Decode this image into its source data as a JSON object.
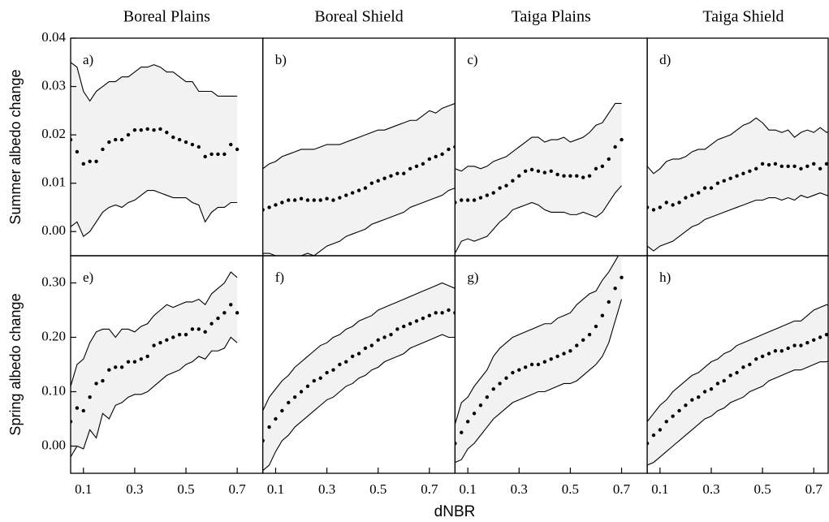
{
  "xlabel": "dNBR",
  "chart_data": [
    {
      "type": "line",
      "title": "Boreal Plains",
      "label": "a)",
      "ylabel": "Summer albedo change",
      "color": "#000000",
      "band_color": "#f2f2f2",
      "xlim": [
        0.05,
        0.8
      ],
      "ylim": [
        -0.005,
        0.04
      ],
      "yticks": [
        {
          "value": 0,
          "label": "0.00"
        },
        0.01,
        0.02,
        0.03,
        0.04
      ],
      "x": [
        0.05,
        0.075,
        0.1,
        0.125,
        0.15,
        0.175,
        0.2,
        0.225,
        0.25,
        0.275,
        0.3,
        0.325,
        0.35,
        0.375,
        0.4,
        0.425,
        0.45,
        0.475,
        0.5,
        0.525,
        0.55,
        0.575,
        0.6,
        0.625,
        0.65,
        0.675,
        0.7
      ],
      "values": [
        0.019,
        0.0165,
        0.014,
        0.0145,
        0.0145,
        0.017,
        0.0185,
        0.019,
        0.019,
        0.02,
        0.021,
        0.021,
        0.0212,
        0.021,
        0.0212,
        0.0205,
        0.0195,
        0.019,
        0.0185,
        0.018,
        0.0175,
        0.0155,
        0.016,
        0.016,
        0.016,
        0.018,
        0.017
      ],
      "upper": [
        0.035,
        0.034,
        0.029,
        0.027,
        0.029,
        0.03,
        0.031,
        0.031,
        0.032,
        0.032,
        0.033,
        0.034,
        0.034,
        0.0345,
        0.034,
        0.033,
        0.033,
        0.032,
        0.031,
        0.031,
        0.029,
        0.029,
        0.029,
        0.028,
        0.028,
        0.028,
        0.028
      ],
      "lower": [
        0.001,
        0.002,
        -0.001,
        0.0,
        0.002,
        0.004,
        0.005,
        0.0055,
        0.005,
        0.006,
        0.0065,
        0.0075,
        0.0085,
        0.0085,
        0.008,
        0.0075,
        0.007,
        0.007,
        0.007,
        0.006,
        0.0055,
        0.002,
        0.004,
        0.005,
        0.005,
        0.006,
        0.006
      ]
    },
    {
      "type": "line",
      "title": "Boreal Shield",
      "label": "b)",
      "color": "#000000",
      "band_color": "#f2f2f2",
      "xlim": [
        0.05,
        0.8
      ],
      "ylim": [
        -0.005,
        0.04
      ],
      "x": [
        0.05,
        0.075,
        0.1,
        0.125,
        0.15,
        0.175,
        0.2,
        0.225,
        0.25,
        0.275,
        0.3,
        0.325,
        0.35,
        0.375,
        0.4,
        0.425,
        0.45,
        0.475,
        0.5,
        0.525,
        0.55,
        0.575,
        0.6,
        0.625,
        0.65,
        0.675,
        0.7,
        0.725,
        0.75,
        0.775,
        0.8
      ],
      "values": [
        0.0045,
        0.005,
        0.0055,
        0.006,
        0.0065,
        0.0065,
        0.0068,
        0.0065,
        0.0065,
        0.0065,
        0.0068,
        0.0065,
        0.007,
        0.0075,
        0.008,
        0.0085,
        0.009,
        0.01,
        0.0105,
        0.011,
        0.0115,
        0.012,
        0.012,
        0.013,
        0.0135,
        0.014,
        0.015,
        0.0155,
        0.016,
        0.017,
        0.0175
      ],
      "upper": [
        0.013,
        0.014,
        0.0145,
        0.0155,
        0.016,
        0.0165,
        0.017,
        0.017,
        0.017,
        0.0175,
        0.018,
        0.018,
        0.018,
        0.0185,
        0.019,
        0.0195,
        0.02,
        0.0205,
        0.021,
        0.021,
        0.0215,
        0.022,
        0.0225,
        0.023,
        0.023,
        0.024,
        0.025,
        0.0245,
        0.0255,
        0.026,
        0.0265
      ],
      "lower": [
        -0.0045,
        -0.0045,
        -0.005,
        -0.005,
        -0.005,
        -0.005,
        -0.005,
        -0.0045,
        -0.005,
        -0.004,
        -0.003,
        -0.0025,
        -0.002,
        -0.001,
        -0.0005,
        0.0,
        0.0005,
        0.0015,
        0.002,
        0.0025,
        0.003,
        0.0035,
        0.004,
        0.005,
        0.0055,
        0.006,
        0.0065,
        0.007,
        0.0075,
        0.0085,
        0.009
      ]
    },
    {
      "type": "line",
      "title": "Taiga Plains",
      "label": "c)",
      "color": "#000000",
      "band_color": "#f2f2f2",
      "xlim": [
        0.05,
        0.8
      ],
      "ylim": [
        -0.005,
        0.04
      ],
      "x": [
        0.05,
        0.075,
        0.1,
        0.125,
        0.15,
        0.175,
        0.2,
        0.225,
        0.25,
        0.275,
        0.3,
        0.325,
        0.35,
        0.375,
        0.4,
        0.425,
        0.45,
        0.475,
        0.5,
        0.525,
        0.55,
        0.575,
        0.6,
        0.625,
        0.65,
        0.675,
        0.7
      ],
      "values": [
        0.006,
        0.0065,
        0.0065,
        0.0065,
        0.007,
        0.0075,
        0.008,
        0.009,
        0.0095,
        0.0105,
        0.0115,
        0.0125,
        0.0128,
        0.0125,
        0.0122,
        0.0125,
        0.0118,
        0.0115,
        0.0115,
        0.0115,
        0.0112,
        0.0115,
        0.013,
        0.0135,
        0.015,
        0.0175,
        0.019
      ],
      "upper": [
        0.013,
        0.0125,
        0.0135,
        0.0135,
        0.013,
        0.0135,
        0.0145,
        0.015,
        0.0155,
        0.0165,
        0.0175,
        0.0185,
        0.0195,
        0.0195,
        0.0185,
        0.019,
        0.019,
        0.0195,
        0.0185,
        0.019,
        0.0195,
        0.0205,
        0.022,
        0.0225,
        0.0245,
        0.0265,
        0.0265
      ],
      "lower": [
        -0.0045,
        -0.002,
        -0.0015,
        -0.002,
        -0.0015,
        -0.001,
        0.0005,
        0.002,
        0.003,
        0.0045,
        0.005,
        0.0055,
        0.006,
        0.0055,
        0.0045,
        0.004,
        0.004,
        0.004,
        0.0035,
        0.0035,
        0.004,
        0.0035,
        0.003,
        0.004,
        0.006,
        0.008,
        0.0095
      ]
    },
    {
      "type": "line",
      "title": "Taiga Shield",
      "label": "d)",
      "color": "#000000",
      "band_color": "#f2f2f2",
      "xlim": [
        0.05,
        0.8
      ],
      "ylim": [
        -0.005,
        0.04
      ],
      "x": [
        0.05,
        0.075,
        0.1,
        0.125,
        0.15,
        0.175,
        0.2,
        0.225,
        0.25,
        0.275,
        0.3,
        0.325,
        0.35,
        0.375,
        0.4,
        0.425,
        0.45,
        0.475,
        0.5,
        0.525,
        0.55,
        0.575,
        0.6,
        0.625,
        0.65,
        0.675,
        0.7,
        0.725,
        0.75,
        0.775,
        0.8
      ],
      "values": [
        0.005,
        0.0045,
        0.005,
        0.006,
        0.0055,
        0.006,
        0.007,
        0.0075,
        0.008,
        0.009,
        0.009,
        0.01,
        0.0105,
        0.011,
        0.0115,
        0.012,
        0.0125,
        0.013,
        0.014,
        0.0138,
        0.014,
        0.0135,
        0.0135,
        0.0135,
        0.013,
        0.0135,
        0.014,
        0.013,
        0.014,
        0.0135,
        0.013
      ],
      "upper": [
        0.0135,
        0.012,
        0.013,
        0.0145,
        0.015,
        0.015,
        0.0155,
        0.0165,
        0.017,
        0.017,
        0.018,
        0.019,
        0.0195,
        0.02,
        0.021,
        0.022,
        0.0225,
        0.0235,
        0.0225,
        0.021,
        0.021,
        0.0205,
        0.021,
        0.0195,
        0.0205,
        0.021,
        0.0205,
        0.0215,
        0.0205,
        0.021,
        0.02
      ],
      "lower": [
        -0.003,
        -0.004,
        -0.003,
        -0.0025,
        -0.002,
        -0.001,
        0.0,
        0.001,
        0.0015,
        0.0025,
        0.003,
        0.0035,
        0.004,
        0.0045,
        0.005,
        0.0055,
        0.006,
        0.0065,
        0.0065,
        0.007,
        0.007,
        0.0065,
        0.007,
        0.0065,
        0.0075,
        0.007,
        0.0075,
        0.008,
        0.0075,
        0.007,
        0.006
      ]
    },
    {
      "type": "line",
      "label": "e)",
      "ylabel": "Spring albedo change",
      "color": "#000000",
      "band_color": "#f2f2f2",
      "xlim": [
        0.05,
        0.8
      ],
      "ylim": [
        -0.05,
        0.35
      ],
      "xticks": [
        0.1,
        0.3,
        0.5,
        0.7
      ],
      "yticks": [
        {
          "value": 0,
          "label": "0.00"
        },
        {
          "value": 0.1,
          "label": "0.10"
        },
        {
          "value": 0.2,
          "label": "0.20"
        },
        {
          "value": 0.3,
          "label": "0.30"
        }
      ],
      "x": [
        0.05,
        0.075,
        0.1,
        0.125,
        0.15,
        0.175,
        0.2,
        0.225,
        0.25,
        0.275,
        0.3,
        0.325,
        0.35,
        0.375,
        0.4,
        0.425,
        0.45,
        0.475,
        0.5,
        0.525,
        0.55,
        0.575,
        0.6,
        0.625,
        0.65,
        0.675,
        0.7
      ],
      "values": [
        0.045,
        0.07,
        0.065,
        0.09,
        0.115,
        0.12,
        0.14,
        0.145,
        0.145,
        0.155,
        0.155,
        0.16,
        0.165,
        0.185,
        0.19,
        0.195,
        0.2,
        0.205,
        0.205,
        0.215,
        0.215,
        0.21,
        0.225,
        0.235,
        0.245,
        0.26,
        0.245
      ],
      "upper": [
        0.11,
        0.15,
        0.16,
        0.19,
        0.21,
        0.215,
        0.215,
        0.2,
        0.215,
        0.215,
        0.21,
        0.22,
        0.225,
        0.24,
        0.25,
        0.26,
        0.255,
        0.26,
        0.265,
        0.265,
        0.27,
        0.26,
        0.28,
        0.29,
        0.3,
        0.32,
        0.31
      ],
      "lower": [
        -0.02,
        0.0,
        -0.005,
        0.03,
        0.015,
        0.06,
        0.05,
        0.075,
        0.08,
        0.09,
        0.095,
        0.095,
        0.1,
        0.11,
        0.12,
        0.13,
        0.135,
        0.14,
        0.15,
        0.155,
        0.165,
        0.16,
        0.175,
        0.175,
        0.18,
        0.2,
        0.19
      ]
    },
    {
      "type": "line",
      "label": "f)",
      "color": "#000000",
      "band_color": "#f2f2f2",
      "xlim": [
        0.05,
        0.8
      ],
      "ylim": [
        -0.05,
        0.35
      ],
      "xticks": [
        0.1,
        0.3,
        0.5,
        0.7
      ],
      "x": [
        0.05,
        0.075,
        0.1,
        0.125,
        0.15,
        0.175,
        0.2,
        0.225,
        0.25,
        0.275,
        0.3,
        0.325,
        0.35,
        0.375,
        0.4,
        0.425,
        0.45,
        0.475,
        0.5,
        0.525,
        0.55,
        0.575,
        0.6,
        0.625,
        0.65,
        0.675,
        0.7,
        0.725,
        0.75,
        0.775,
        0.8
      ],
      "values": [
        0.01,
        0.035,
        0.05,
        0.065,
        0.08,
        0.09,
        0.1,
        0.11,
        0.12,
        0.125,
        0.135,
        0.14,
        0.15,
        0.155,
        0.165,
        0.17,
        0.18,
        0.185,
        0.195,
        0.2,
        0.205,
        0.215,
        0.22,
        0.225,
        0.23,
        0.235,
        0.24,
        0.245,
        0.245,
        0.25,
        0.245
      ],
      "upper": [
        0.065,
        0.09,
        0.105,
        0.12,
        0.13,
        0.145,
        0.155,
        0.165,
        0.175,
        0.185,
        0.19,
        0.2,
        0.205,
        0.215,
        0.22,
        0.23,
        0.235,
        0.24,
        0.25,
        0.255,
        0.26,
        0.265,
        0.27,
        0.275,
        0.28,
        0.285,
        0.29,
        0.295,
        0.3,
        0.295,
        0.29
      ],
      "lower": [
        -0.045,
        -0.035,
        -0.01,
        0.01,
        0.02,
        0.035,
        0.045,
        0.055,
        0.065,
        0.075,
        0.085,
        0.09,
        0.1,
        0.11,
        0.115,
        0.125,
        0.13,
        0.14,
        0.145,
        0.155,
        0.16,
        0.165,
        0.17,
        0.18,
        0.185,
        0.19,
        0.195,
        0.2,
        0.205,
        0.2,
        0.2
      ]
    },
    {
      "type": "line",
      "label": "g)",
      "color": "#000000",
      "band_color": "#f2f2f2",
      "xlim": [
        0.05,
        0.8
      ],
      "ylim": [
        -0.05,
        0.35
      ],
      "xticks": [
        0.1,
        0.3,
        0.5,
        0.7
      ],
      "x": [
        0.05,
        0.075,
        0.1,
        0.125,
        0.15,
        0.175,
        0.2,
        0.225,
        0.25,
        0.275,
        0.3,
        0.325,
        0.35,
        0.375,
        0.4,
        0.425,
        0.45,
        0.475,
        0.5,
        0.525,
        0.55,
        0.575,
        0.6,
        0.625,
        0.65,
        0.675,
        0.7
      ],
      "values": [
        0.005,
        0.025,
        0.045,
        0.06,
        0.075,
        0.09,
        0.105,
        0.115,
        0.125,
        0.135,
        0.14,
        0.145,
        0.15,
        0.15,
        0.155,
        0.16,
        0.165,
        0.17,
        0.175,
        0.185,
        0.195,
        0.205,
        0.22,
        0.24,
        0.265,
        0.29,
        0.31
      ],
      "upper": [
        0.04,
        0.08,
        0.09,
        0.11,
        0.125,
        0.14,
        0.165,
        0.18,
        0.19,
        0.2,
        0.205,
        0.21,
        0.215,
        0.22,
        0.225,
        0.225,
        0.235,
        0.24,
        0.245,
        0.26,
        0.27,
        0.28,
        0.285,
        0.305,
        0.32,
        0.34,
        0.36
      ],
      "lower": [
        -0.03,
        -0.025,
        -0.005,
        0.005,
        0.02,
        0.035,
        0.05,
        0.06,
        0.07,
        0.08,
        0.085,
        0.09,
        0.095,
        0.1,
        0.1,
        0.105,
        0.11,
        0.115,
        0.115,
        0.12,
        0.13,
        0.14,
        0.15,
        0.165,
        0.19,
        0.23,
        0.27
      ]
    },
    {
      "type": "line",
      "label": "h)",
      "color": "#000000",
      "band_color": "#f2f2f2",
      "xlim": [
        0.05,
        0.8
      ],
      "ylim": [
        -0.05,
        0.35
      ],
      "xticks": [
        0.1,
        0.3,
        0.5,
        0.7
      ],
      "x": [
        0.05,
        0.075,
        0.1,
        0.125,
        0.15,
        0.175,
        0.2,
        0.225,
        0.25,
        0.275,
        0.3,
        0.325,
        0.35,
        0.375,
        0.4,
        0.425,
        0.45,
        0.475,
        0.5,
        0.525,
        0.55,
        0.575,
        0.6,
        0.625,
        0.65,
        0.675,
        0.7,
        0.725,
        0.75,
        0.775,
        0.8
      ],
      "values": [
        0.005,
        0.02,
        0.03,
        0.045,
        0.055,
        0.065,
        0.075,
        0.085,
        0.09,
        0.1,
        0.105,
        0.115,
        0.12,
        0.13,
        0.135,
        0.145,
        0.15,
        0.16,
        0.165,
        0.17,
        0.175,
        0.175,
        0.18,
        0.185,
        0.185,
        0.19,
        0.195,
        0.2,
        0.205,
        0.21,
        0.205
      ],
      "upper": [
        0.045,
        0.06,
        0.075,
        0.085,
        0.1,
        0.11,
        0.12,
        0.13,
        0.135,
        0.145,
        0.155,
        0.16,
        0.17,
        0.175,
        0.185,
        0.19,
        0.195,
        0.2,
        0.205,
        0.21,
        0.215,
        0.22,
        0.225,
        0.23,
        0.23,
        0.24,
        0.25,
        0.255,
        0.26,
        0.255,
        0.245
      ],
      "lower": [
        -0.035,
        -0.03,
        -0.02,
        -0.01,
        0.0,
        0.01,
        0.02,
        0.03,
        0.04,
        0.05,
        0.055,
        0.065,
        0.07,
        0.08,
        0.085,
        0.09,
        0.1,
        0.105,
        0.11,
        0.12,
        0.125,
        0.13,
        0.135,
        0.14,
        0.14,
        0.145,
        0.15,
        0.155,
        0.155,
        0.16,
        0.155
      ]
    }
  ]
}
